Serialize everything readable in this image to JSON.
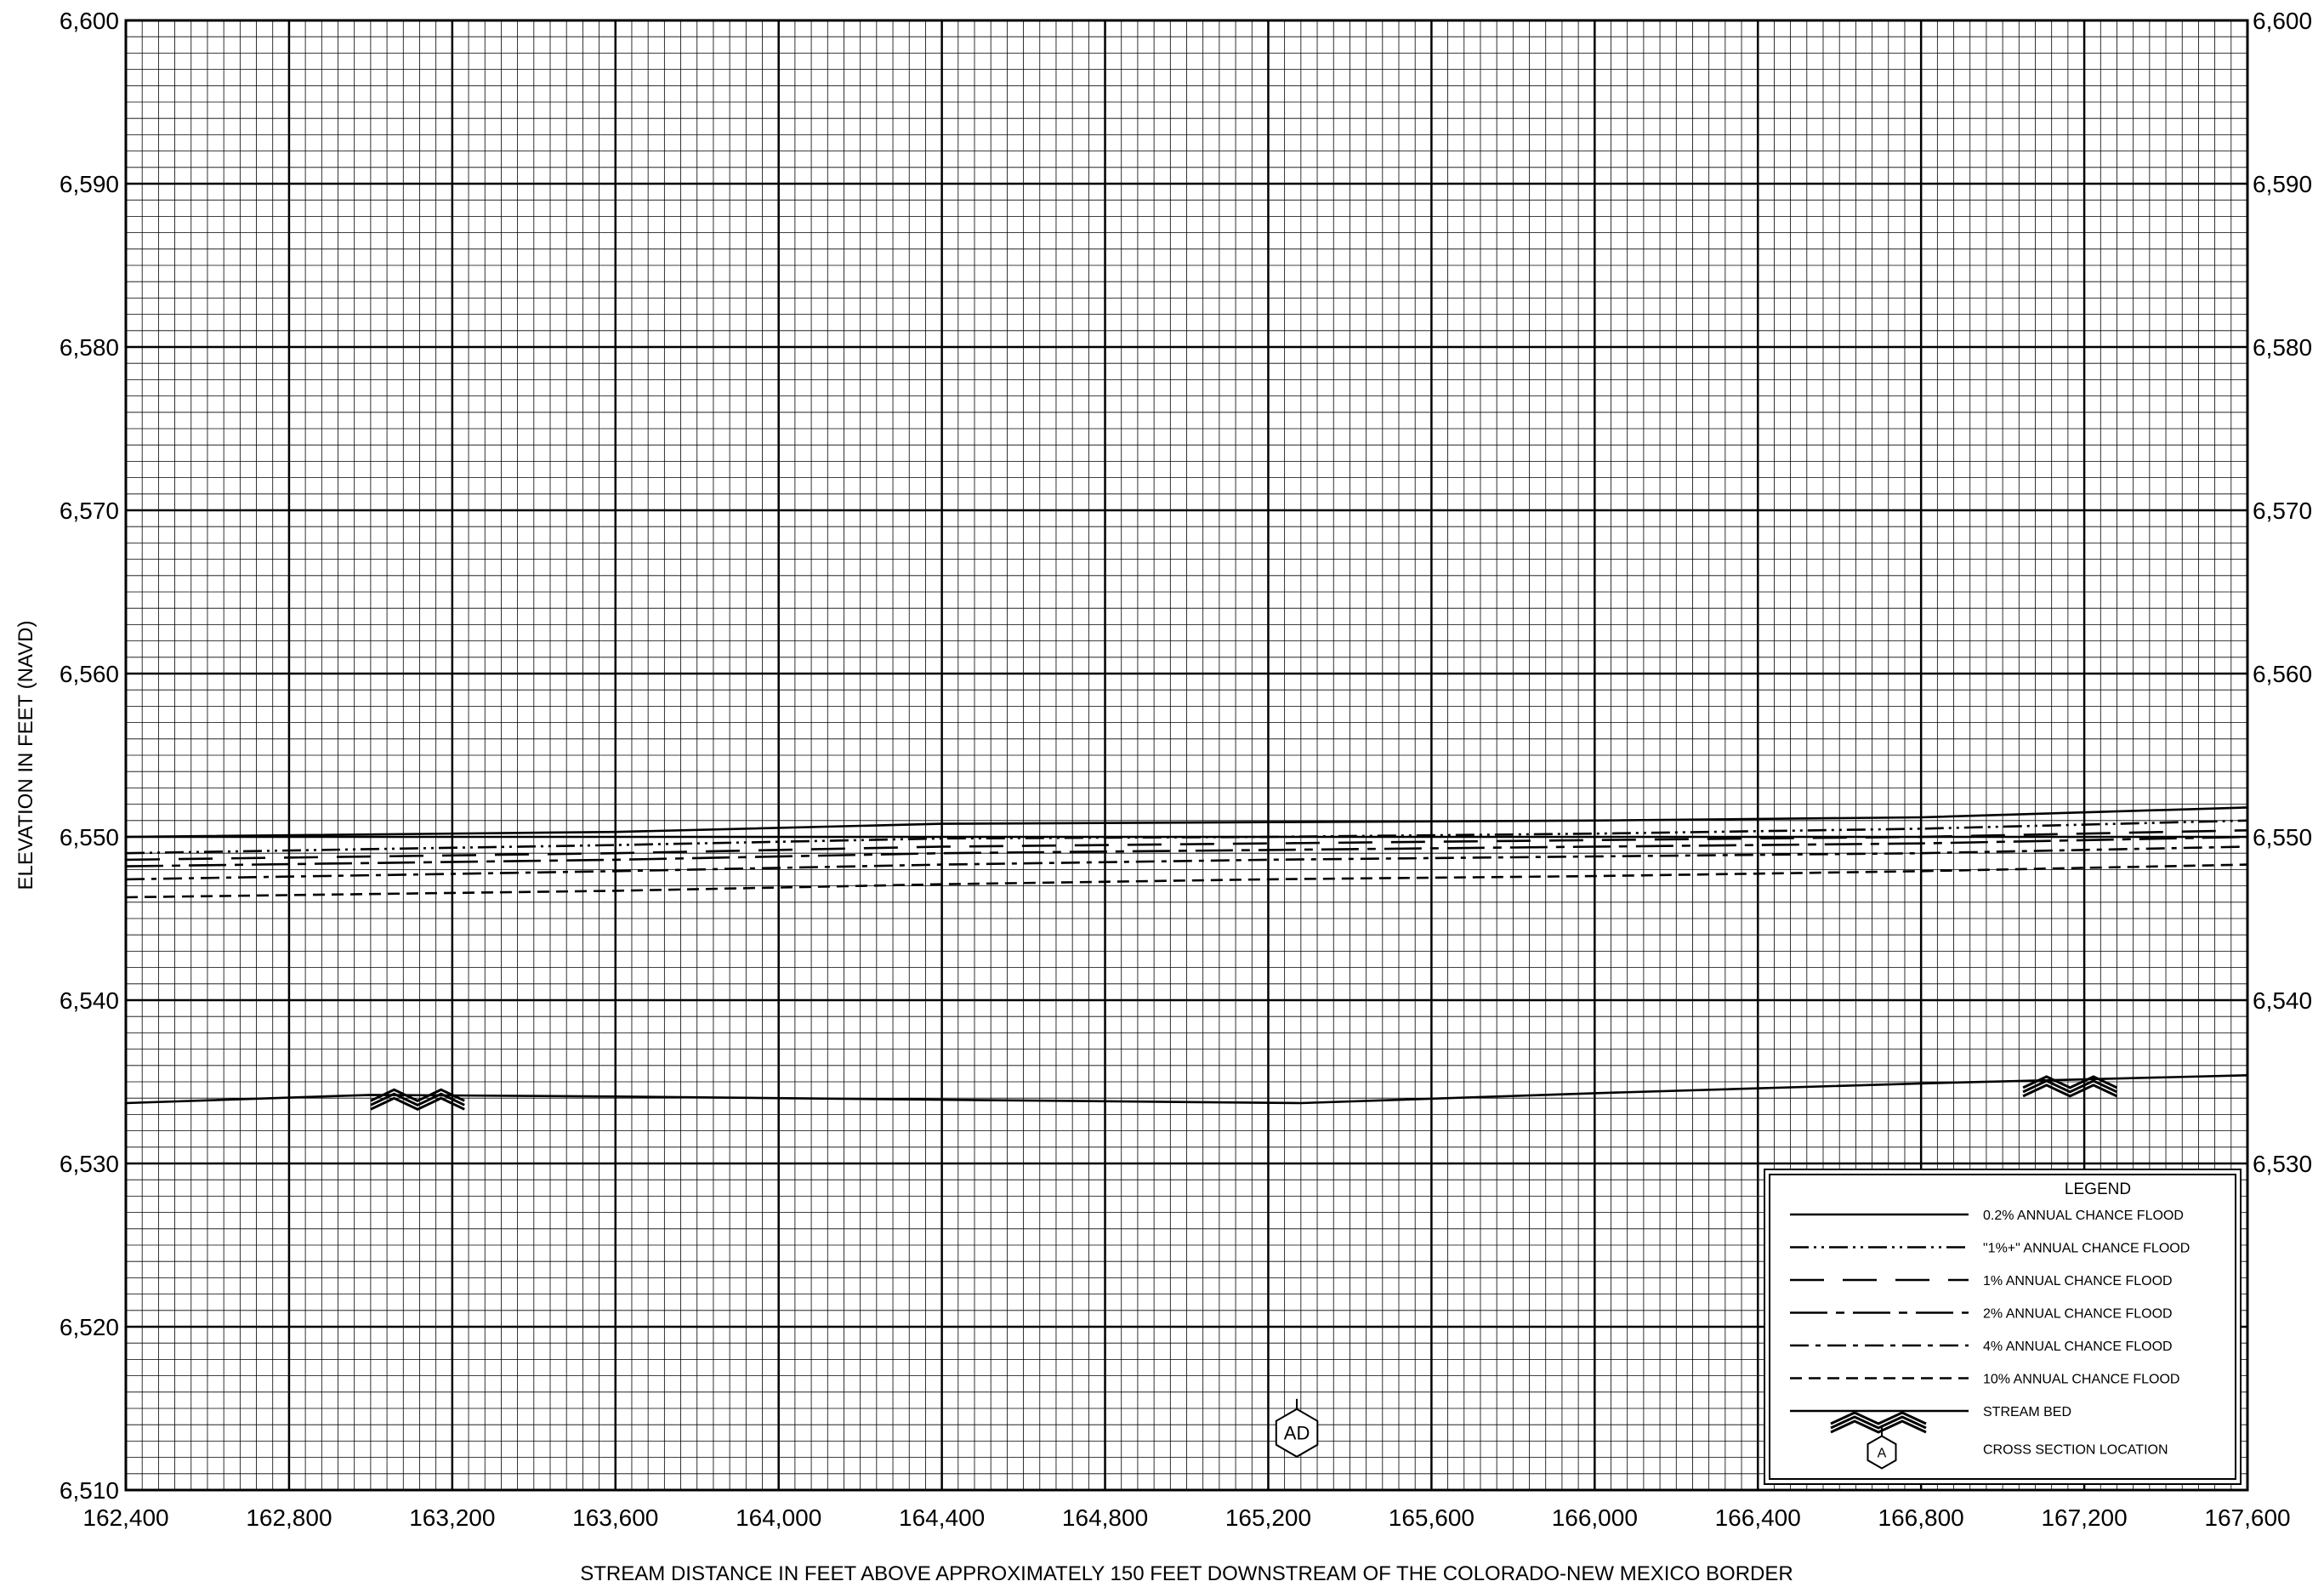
{
  "chart_data": {
    "type": "line",
    "title": "",
    "xlabel": "STREAM DISTANCE IN FEET ABOVE APPROXIMATELY 150 FEET DOWNSTREAM OF THE COLORADO-NEW MEXICO BORDER",
    "ylabel": "ELEVATION IN FEET (NAVD)",
    "xlim": [
      162400,
      167600
    ],
    "ylim": [
      6510,
      6600
    ],
    "x_ticks": [
      162400,
      162800,
      163200,
      163600,
      164000,
      164400,
      164800,
      165200,
      165600,
      166000,
      166400,
      166800,
      167200,
      167600
    ],
    "x_tick_labels": [
      "162,400",
      "162,800",
      "163,200",
      "163,600",
      "164,000",
      "164,400",
      "164,800",
      "165,200",
      "165,600",
      "166,000",
      "166,400",
      "166,800",
      "167,200",
      "167,600"
    ],
    "y_ticks": [
      6510,
      6520,
      6530,
      6540,
      6550,
      6560,
      6570,
      6580,
      6590,
      6600
    ],
    "y_tick_labels": [
      "6,510",
      "6,520",
      "6,530",
      "6,540",
      "6,550",
      "6,560",
      "6,570",
      "6,580",
      "6,590",
      "6,600"
    ],
    "right_y_tick_labels": [
      "6,530",
      "6,540",
      "6,550",
      "6,560",
      "6,570",
      "6,580",
      "6,590",
      "6,600"
    ],
    "grid": true,
    "legend_position": "bottom-right",
    "legend_title": "LEGEND",
    "series": [
      {
        "name": "0.2% ANNUAL CHANCE FLOOD",
        "dash": "solid",
        "x": [
          162400,
          163600,
          164400,
          165200,
          166000,
          166800,
          167600
        ],
        "y": [
          6550.0,
          6550.3,
          6550.8,
          6550.9,
          6551.0,
          6551.2,
          6551.8
        ]
      },
      {
        "name": "\"1%+\" ANNUAL CHANCE FLOOD",
        "dash": "dash-dot-dot",
        "x": [
          162400,
          163600,
          164400,
          165200,
          166000,
          166800,
          167600
        ],
        "y": [
          6549.0,
          6549.5,
          6549.9,
          6550.0,
          6550.2,
          6550.5,
          6551.0
        ]
      },
      {
        "name": "1% ANNUAL CHANCE FLOOD",
        "dash": "long-dash",
        "x": [
          162400,
          163600,
          164400,
          165200,
          166000,
          166800,
          167600
        ],
        "y": [
          6548.6,
          6549.0,
          6549.4,
          6549.6,
          6549.8,
          6550.0,
          6550.4
        ]
      },
      {
        "name": "2% ANNUAL CHANCE FLOOD",
        "dash": "long-dash-dot",
        "x": [
          162400,
          163600,
          164400,
          165200,
          166000,
          166800,
          167600
        ],
        "y": [
          6548.2,
          6548.6,
          6549.0,
          6549.2,
          6549.4,
          6549.6,
          6550.0
        ]
      },
      {
        "name": "4% ANNUAL CHANCE FLOOD",
        "dash": "dash-dot",
        "x": [
          162400,
          163600,
          164400,
          165200,
          166000,
          166800,
          167600
        ],
        "y": [
          6547.4,
          6547.9,
          6548.3,
          6548.6,
          6548.8,
          6549.0,
          6549.4
        ]
      },
      {
        "name": "10% ANNUAL CHANCE FLOOD",
        "dash": "dash",
        "x": [
          162400,
          163600,
          164400,
          165200,
          166000,
          166800,
          167600
        ],
        "y": [
          6546.3,
          6546.7,
          6547.1,
          6547.4,
          6547.6,
          6547.9,
          6548.3
        ]
      },
      {
        "name": "STREAM BED",
        "dash": "solid",
        "x": [
          162400,
          163000,
          163600,
          164400,
          165280,
          166000,
          166800,
          167600
        ],
        "y": [
          6533.7,
          6534.2,
          6534.1,
          6533.9,
          6533.7,
          6534.3,
          6534.9,
          6535.4
        ]
      }
    ],
    "stream_bed_markers": [
      {
        "x_start": 163000,
        "x_end": 163230,
        "y": 6534.1
      },
      {
        "x_start": 167050,
        "x_end": 167280,
        "y": 6534.9
      }
    ],
    "cross_sections": [
      {
        "label": "AD",
        "x": 165270,
        "y": 6513.5
      }
    ],
    "legend_symbol": {
      "label": "A",
      "name": "CROSS SECTION LOCATION"
    }
  },
  "colors": {
    "line": "#000000",
    "background": "#ffffff"
  }
}
